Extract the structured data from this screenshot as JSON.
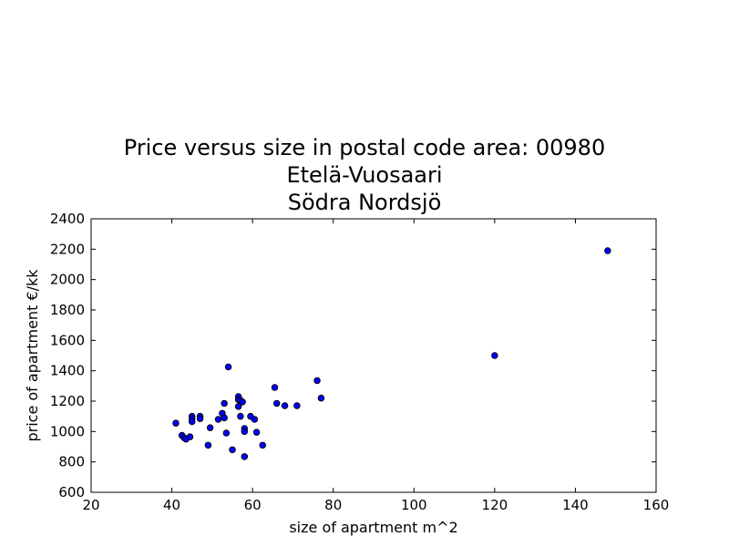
{
  "chart_data": {
    "type": "scatter",
    "title_lines": [
      "Price versus size in postal code area: 00980",
      "Etelä-Vuosaari",
      "Södra Nordsjö"
    ],
    "xlabel": "size of apartment m^2",
    "ylabel": "price of apartment €/kk",
    "xlim": [
      20,
      160
    ],
    "ylim": [
      600,
      2400
    ],
    "x_ticks": [
      20,
      40,
      60,
      80,
      100,
      120,
      140,
      160
    ],
    "y_ticks": [
      600,
      800,
      1000,
      1200,
      1400,
      1600,
      1800,
      2000,
      2200,
      2400
    ],
    "grid": false,
    "legend": "none",
    "marker_color": "#0000ff",
    "marker_edge_color": "#000000",
    "points": [
      {
        "x": 41,
        "y": 1055
      },
      {
        "x": 42.5,
        "y": 975
      },
      {
        "x": 43,
        "y": 960
      },
      {
        "x": 43.5,
        "y": 950
      },
      {
        "x": 44.5,
        "y": 965
      },
      {
        "x": 45,
        "y": 1100
      },
      {
        "x": 45,
        "y": 1085
      },
      {
        "x": 45,
        "y": 1065
      },
      {
        "x": 47,
        "y": 1100
      },
      {
        "x": 47,
        "y": 1085
      },
      {
        "x": 49,
        "y": 910
      },
      {
        "x": 49.5,
        "y": 1025
      },
      {
        "x": 51.5,
        "y": 1080
      },
      {
        "x": 52.5,
        "y": 1120
      },
      {
        "x": 53,
        "y": 1185
      },
      {
        "x": 53,
        "y": 1090
      },
      {
        "x": 53.5,
        "y": 990
      },
      {
        "x": 54,
        "y": 1425
      },
      {
        "x": 55,
        "y": 880
      },
      {
        "x": 56.5,
        "y": 1230
      },
      {
        "x": 56.5,
        "y": 1210
      },
      {
        "x": 56.5,
        "y": 1165
      },
      {
        "x": 57,
        "y": 1100
      },
      {
        "x": 57,
        "y": 1205
      },
      {
        "x": 57.5,
        "y": 1195
      },
      {
        "x": 58,
        "y": 1020
      },
      {
        "x": 58,
        "y": 1000
      },
      {
        "x": 58,
        "y": 835
      },
      {
        "x": 59.5,
        "y": 1100
      },
      {
        "x": 60.5,
        "y": 1080
      },
      {
        "x": 61,
        "y": 995
      },
      {
        "x": 62.5,
        "y": 910
      },
      {
        "x": 65.5,
        "y": 1290
      },
      {
        "x": 66,
        "y": 1185
      },
      {
        "x": 68,
        "y": 1170
      },
      {
        "x": 71,
        "y": 1170
      },
      {
        "x": 76,
        "y": 1335
      },
      {
        "x": 77,
        "y": 1220
      },
      {
        "x": 120,
        "y": 1500
      },
      {
        "x": 148,
        "y": 2190
      }
    ]
  }
}
